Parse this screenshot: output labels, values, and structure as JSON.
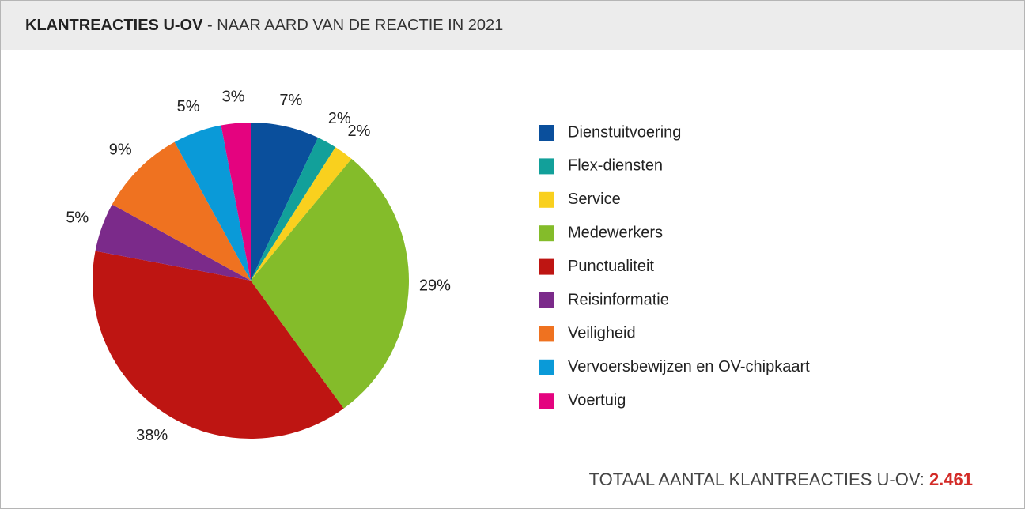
{
  "chart_data": {
    "type": "pie",
    "title": "KLANTREACTIES U-OV",
    "subtitle": "- NAAR AARD VAN DE REACTIE IN 2021",
    "categories": [
      "Dienstuitvoering",
      "Flex-diensten",
      "Service",
      "Medewerkers",
      "Punctualiteit",
      "Reisinformatie",
      "Veiligheid",
      "Vervoersbewijzen en OV-chipkaart",
      "Voertuig"
    ],
    "values": [
      7,
      2,
      2,
      29,
      38,
      5,
      9,
      5,
      3
    ],
    "value_labels": [
      "7%",
      "2%",
      "2%",
      "29%",
      "38%",
      "5%",
      "9%",
      "5%",
      "3%"
    ],
    "colors": [
      "#0a4f9c",
      "#12a09a",
      "#f9d01e",
      "#84bc2a",
      "#be1512",
      "#7b2a8a",
      "#ef7220",
      "#0a9ad8",
      "#e4037f"
    ],
    "legend": "right",
    "total_label": "TOTAAL AANTAL KLANTREACTIES U-OV:",
    "total": "2.461"
  }
}
